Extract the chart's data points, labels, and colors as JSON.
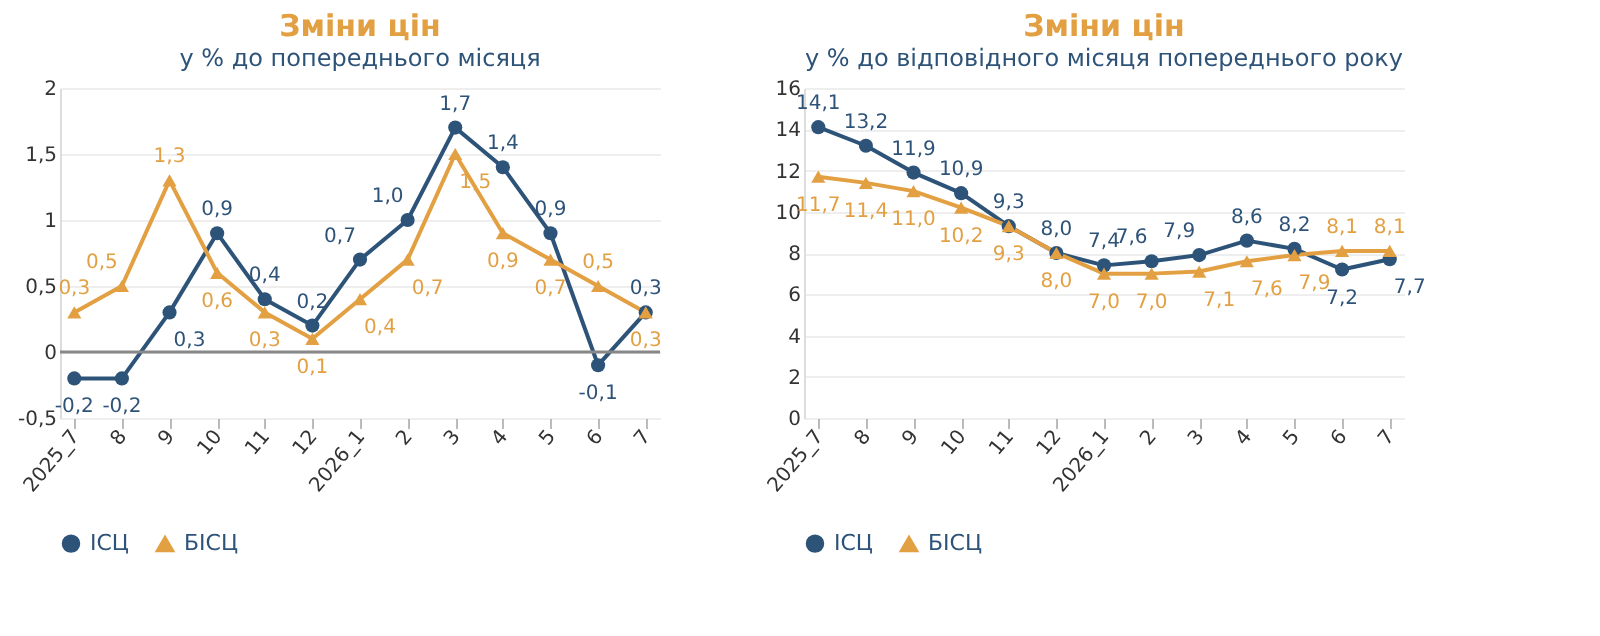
{
  "chart_data": [
    {
      "type": "line",
      "title": "Зміни цін",
      "subtitle": "у % до попереднього місяця",
      "categories": [
        "2025_7",
        "8",
        "9",
        "10",
        "11",
        "12",
        "2026_1",
        "2",
        "3",
        "4",
        "5",
        "6",
        "7"
      ],
      "series": [
        {
          "name": "ІСЦ",
          "color": "#2e5378",
          "marker": "circle",
          "values": [
            -0.2,
            -0.2,
            0.3,
            0.9,
            0.4,
            0.2,
            0.7,
            1.0,
            1.7,
            1.4,
            0.9,
            -0.1,
            0.3
          ],
          "value_labels": [
            "-0,2",
            "-0,2",
            "0,3",
            "0,9",
            "0,4",
            "0,2",
            "0,7",
            "1,0",
            "1,7",
            "1,4",
            "0,9",
            "-0,1",
            "0,3"
          ]
        },
        {
          "name": "БІСЦ",
          "color": "#e3a043",
          "marker": "triangle",
          "values": [
            0.3,
            0.5,
            1.3,
            0.6,
            0.3,
            0.1,
            0.4,
            0.7,
            1.5,
            0.9,
            0.7,
            0.5,
            0.3
          ],
          "value_labels": [
            "0,3",
            "0,5",
            "1,3",
            "0,6",
            "0,3",
            "0,1",
            "0,4",
            "0,7",
            "1,5",
            "0,9",
            "0,7",
            "0,5",
            "0,3"
          ]
        }
      ],
      "ylim": [
        -0.5,
        2
      ],
      "yticks": [
        {
          "value": -0.5,
          "label": "-0,5"
        },
        0,
        {
          "value": 0.5,
          "label": "0,5"
        },
        1,
        {
          "value": 1.5,
          "label": "1,5"
        },
        2
      ],
      "grid": "y",
      "legend": "bottom",
      "line_style": "solid"
    },
    {
      "type": "line",
      "title": "Зміни цін",
      "subtitle": "у % до відповідного місяця попереднього року",
      "categories": [
        "2025_7",
        "8",
        "9",
        "10",
        "11",
        "12",
        "2026_1",
        "2",
        "3",
        "4",
        "5",
        "6",
        "7"
      ],
      "series": [
        {
          "name": "ІСЦ",
          "color": "#2e5378",
          "marker": "circle",
          "values": [
            14.1,
            13.2,
            11.9,
            10.9,
            9.3,
            8.0,
            7.4,
            7.6,
            7.9,
            8.6,
            8.2,
            7.2,
            7.7
          ],
          "value_labels": [
            "14,1",
            "13,2",
            "11,9",
            "10,9",
            "9,3",
            "8,0",
            "7,4",
            "7,6",
            "7,9",
            "8,6",
            "8,2",
            "7,2",
            "7,7"
          ]
        },
        {
          "name": "БІСЦ",
          "color": "#e3a043",
          "marker": "triangle",
          "values": [
            11.7,
            11.4,
            11.0,
            10.2,
            9.3,
            8.0,
            7.0,
            7.0,
            7.1,
            7.6,
            7.9,
            8.1,
            8.1
          ],
          "value_labels": [
            "11,7",
            "11,4",
            "11,0",
            "10,2",
            "9,3",
            "8,0",
            "7,0",
            "7,0",
            "7,1",
            "7,6",
            "7,9",
            "8,1",
            "8,1"
          ]
        }
      ],
      "ylim": [
        0,
        16
      ],
      "yticks": [
        0,
        2,
        4,
        6,
        8,
        10,
        12,
        14,
        16
      ],
      "grid": "y",
      "legend": "bottom",
      "line_style": "solid"
    }
  ]
}
